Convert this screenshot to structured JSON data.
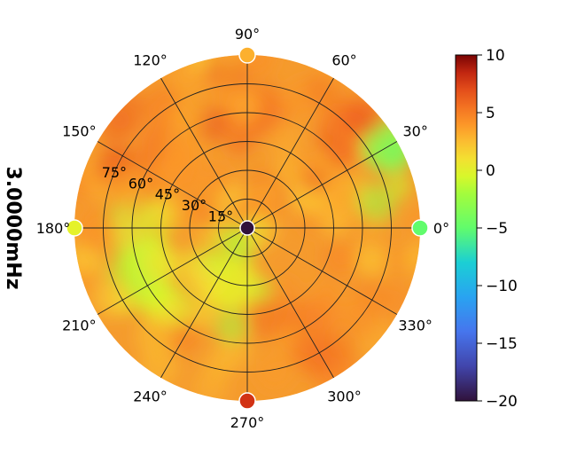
{
  "chart_data": {
    "type": "heatmap",
    "projection": "polar",
    "title": "",
    "side_label": "3.0000mHz",
    "grid": true,
    "theta_unit": "degrees",
    "theta_tick_labels": [
      "0°",
      "30°",
      "60°",
      "90°",
      "120°",
      "150°",
      "180°",
      "210°",
      "240°",
      "270°",
      "300°",
      "330°"
    ],
    "theta_ticks": [
      0,
      30,
      60,
      90,
      120,
      150,
      180,
      210,
      240,
      270,
      300,
      330
    ],
    "radial_tick_labels": [
      "15°",
      "30°",
      "45°",
      "60°",
      "75°"
    ],
    "radial_ticks": [
      15,
      30,
      45,
      60,
      75
    ],
    "radial_lim": [
      0,
      90
    ],
    "radial_label_angle": 157.5,
    "colormap": "turbo",
    "colorbar": {
      "range": [
        -20,
        10
      ],
      "tick_labels": [
        "10",
        "5",
        "0",
        "−5",
        "−10",
        "−15",
        "−20"
      ],
      "ticks": [
        10,
        5,
        0,
        -5,
        -10,
        -15,
        -20
      ],
      "placement": "right"
    },
    "value_field_samples": [
      {
        "azimuth": 45,
        "zenith": 70,
        "value": 5
      },
      {
        "azimuth": 30,
        "zenith": 85,
        "value": -3
      },
      {
        "azimuth": 200,
        "zenith": 55,
        "value": 0
      },
      {
        "azimuth": 255,
        "zenith": 30,
        "value": 0
      },
      {
        "azimuth": 300,
        "zenith": 60,
        "value": 5
      },
      {
        "azimuth": 135,
        "zenith": 60,
        "value": 5
      },
      {
        "azimuth": 90,
        "zenith": 60,
        "value": 5
      }
    ],
    "markers": [
      {
        "azimuth": 0,
        "zenith": 0,
        "value": -20
      },
      {
        "azimuth": 0,
        "zenith": 90,
        "value": -5
      },
      {
        "azimuth": 90,
        "zenith": 90,
        "value": 3
      },
      {
        "azimuth": 180,
        "zenith": 90,
        "value": 0
      },
      {
        "azimuth": 270,
        "zenith": 90,
        "value": 8
      }
    ]
  }
}
